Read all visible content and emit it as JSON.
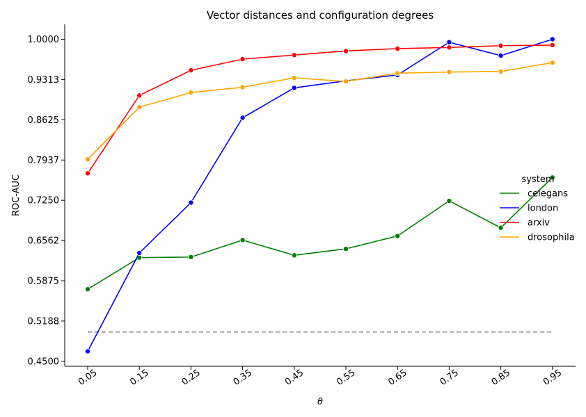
{
  "chart_data": {
    "type": "line",
    "title": "Vector distances and configuration degrees",
    "xlabel": "θ",
    "ylabel": "ROC-AUC",
    "categories": [
      "0.05",
      "0.15",
      "0.25",
      "0.35",
      "0.45",
      "0.55",
      "0.65",
      "0.75",
      "0.85",
      "0.95"
    ],
    "yticks": [
      "0.4500",
      "0.5188",
      "0.5875",
      "0.6562",
      "0.7250",
      "0.7937",
      "0.8625",
      "0.9313",
      "1.0000"
    ],
    "ylim": [
      0.4415,
      1.0255
    ],
    "grid": false,
    "legend": {
      "title": "system",
      "placement": "right"
    },
    "series": [
      {
        "name": "celegans",
        "color": "#008000",
        "values": [
          0.573,
          0.627,
          0.628,
          0.657,
          0.631,
          0.642,
          0.664,
          0.724,
          0.678,
          0.764
        ]
      },
      {
        "name": "london",
        "color": "#0000ff",
        "values": [
          0.467,
          0.635,
          0.721,
          0.866,
          0.917,
          0.929,
          0.939,
          0.995,
          0.972,
          1.0
        ]
      },
      {
        "name": "arxiv",
        "color": "#ff0000",
        "values": [
          0.771,
          0.904,
          0.947,
          0.966,
          0.973,
          0.98,
          0.984,
          0.986,
          0.989,
          0.99
        ]
      },
      {
        "name": "drosophila",
        "color": "#ffa500",
        "values": [
          0.795,
          0.884,
          0.909,
          0.918,
          0.934,
          0.928,
          0.942,
          0.944,
          0.945,
          0.96
        ]
      }
    ],
    "reference_line": {
      "value": 0.5,
      "color": "#808080",
      "style": "dashed"
    }
  }
}
